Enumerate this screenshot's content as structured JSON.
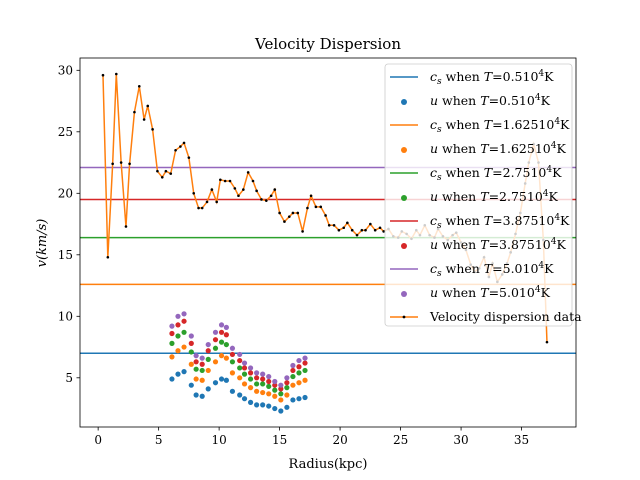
{
  "chart_data": {
    "type": "line",
    "title": "Velocity Dispersion",
    "xlabel": "Radius(kpc)",
    "ylabel": "v(km/s)",
    "xlim": [
      -1.5,
      39.5
    ],
    "ylim": [
      1.0,
      31.0
    ],
    "xticks": [
      0,
      5,
      10,
      15,
      20,
      25,
      30,
      35
    ],
    "yticks": [
      5,
      10,
      15,
      20,
      25,
      30
    ],
    "grid": false,
    "legend": "upper right",
    "legend_entries": [
      {
        "kind": "line",
        "color": "#1f77b4",
        "sym": "c",
        "sub": "s",
        "pre": " when ",
        "tvar": "T",
        "tval": "=0.510",
        "exp": "4",
        "unit": "K"
      },
      {
        "kind": "dot",
        "color": "#1f77b4",
        "sym": "u",
        "sub": "",
        "pre": " when ",
        "tvar": "T",
        "tval": "=0.510",
        "exp": "4",
        "unit": "K"
      },
      {
        "kind": "line",
        "color": "#ff7f0e",
        "sym": "c",
        "sub": "s",
        "pre": " when ",
        "tvar": "T",
        "tval": "=1.62510",
        "exp": "4",
        "unit": "K"
      },
      {
        "kind": "dot",
        "color": "#ff7f0e",
        "sym": "u",
        "sub": "",
        "pre": " when ",
        "tvar": "T",
        "tval": "=1.62510",
        "exp": "4",
        "unit": "K"
      },
      {
        "kind": "line",
        "color": "#2ca02c",
        "sym": "c",
        "sub": "s",
        "pre": " when ",
        "tvar": "T",
        "tval": "=2.7510",
        "exp": "4",
        "unit": "K"
      },
      {
        "kind": "dot",
        "color": "#2ca02c",
        "sym": "u",
        "sub": "",
        "pre": " when ",
        "tvar": "T",
        "tval": "=2.7510",
        "exp": "4",
        "unit": "K"
      },
      {
        "kind": "line",
        "color": "#d62728",
        "sym": "c",
        "sub": "s",
        "pre": " when ",
        "tvar": "T",
        "tval": "=3.87510",
        "exp": "4",
        "unit": "K"
      },
      {
        "kind": "dot",
        "color": "#d62728",
        "sym": "u",
        "sub": "",
        "pre": " when ",
        "tvar": "T",
        "tval": "=3.87510",
        "exp": "4",
        "unit": "K"
      },
      {
        "kind": "line",
        "color": "#9467bd",
        "sym": "c",
        "sub": "s",
        "pre": " when ",
        "tvar": "T",
        "tval": "=5.010",
        "exp": "4",
        "unit": "K"
      },
      {
        "kind": "dot",
        "color": "#9467bd",
        "sym": "u",
        "sub": "",
        "pre": " when ",
        "tvar": "T",
        "tval": "=5.010",
        "exp": "4",
        "unit": "K"
      },
      {
        "kind": "linedot",
        "color": "#ff7f0e",
        "text": "Velocity dispersion data"
      }
    ],
    "hlines": [
      {
        "y": 7.0,
        "color": "#1f77b4"
      },
      {
        "y": 12.6,
        "color": "#ff7f0e"
      },
      {
        "y": 16.4,
        "color": "#2ca02c"
      },
      {
        "y": 19.5,
        "color": "#d62728"
      },
      {
        "y": 22.1,
        "color": "#9467bd"
      }
    ],
    "dispersion": {
      "color": "#ff7f0e",
      "marker_color": "#000000",
      "x": [
        0.4,
        0.8,
        1.2,
        1.5,
        1.9,
        2.3,
        2.6,
        3.0,
        3.4,
        3.8,
        4.1,
        4.5,
        4.9,
        5.3,
        5.6,
        6.0,
        6.4,
        6.8,
        7.1,
        7.5,
        7.9,
        8.3,
        8.6,
        9.0,
        9.4,
        9.8,
        10.1,
        10.5,
        10.9,
        11.3,
        11.6,
        12.0,
        12.4,
        12.8,
        13.1,
        13.5,
        13.9,
        14.3,
        14.6,
        15.0,
        15.4,
        15.8,
        16.1,
        16.5,
        16.9,
        17.3,
        17.6,
        18.0,
        18.4,
        18.8,
        19.1,
        19.5,
        19.9,
        20.3,
        20.6,
        21.0,
        21.4,
        21.8,
        22.1,
        22.5,
        22.9,
        23.3,
        23.6,
        24.0,
        24.4,
        24.8,
        25.1,
        25.5,
        25.9,
        26.3,
        26.6,
        27.0,
        27.4,
        27.8,
        28.1,
        28.5,
        28.9,
        29.3,
        29.6,
        30.0,
        30.4,
        30.8,
        31.1,
        31.5,
        31.9,
        32.3,
        32.6,
        33.0,
        33.4,
        33.8,
        34.1,
        34.5,
        34.9,
        35.3,
        35.6,
        36.0,
        36.4,
        36.8,
        37.1
      ],
      "y": [
        29.6,
        14.8,
        22.4,
        29.7,
        22.5,
        17.3,
        22.4,
        26.6,
        28.7,
        26.0,
        27.1,
        25.2,
        21.8,
        21.3,
        21.8,
        21.6,
        23.5,
        23.8,
        24.1,
        22.9,
        20.0,
        18.8,
        18.8,
        19.3,
        20.3,
        19.3,
        21.1,
        21.0,
        21.0,
        20.4,
        19.8,
        20.3,
        21.7,
        21.0,
        20.2,
        19.5,
        19.4,
        19.8,
        20.3,
        18.4,
        17.7,
        18.1,
        18.4,
        18.4,
        16.9,
        18.8,
        19.8,
        18.9,
        18.9,
        18.2,
        17.4,
        17.4,
        17.0,
        17.2,
        17.6,
        17.0,
        16.6,
        17.0,
        17.0,
        17.5,
        17.0,
        17.2,
        16.9,
        17.1,
        16.5,
        16.4,
        16.9,
        16.7,
        16.3,
        17.0,
        16.6,
        17.4,
        16.6,
        16.4,
        17.1,
        16.5,
        16.2,
        16.6,
        16.8,
        16.0,
        15.4,
        14.2,
        13.6,
        13.9,
        14.8,
        13.2,
        14.3,
        12.8,
        13.4,
        14.3,
        15.2,
        16.7,
        18.4,
        20.8,
        22.5,
        24.0,
        22.5,
        16.2,
        7.9
      ]
    },
    "scatter_x": [
      6.1,
      6.6,
      7.1,
      7.7,
      8.1,
      8.6,
      9.1,
      9.7,
      10.2,
      10.6,
      11.1,
      11.7,
      12.1,
      12.6,
      13.1,
      13.6,
      14.1,
      14.6,
      15.1,
      15.6,
      16.1,
      16.6,
      17.1
    ],
    "scatter_series": [
      {
        "color": "#1f77b4",
        "values": [
          4.9,
          5.3,
          5.5,
          4.4,
          3.6,
          3.5,
          4.1,
          4.6,
          4.9,
          4.8,
          3.9,
          3.6,
          3.3,
          3.0,
          2.8,
          2.8,
          2.7,
          2.5,
          2.3,
          2.6,
          3.2,
          3.3,
          3.4
        ]
      },
      {
        "color": "#ff7f0e",
        "values": [
          6.7,
          7.2,
          7.5,
          6.1,
          4.9,
          4.8,
          5.6,
          6.3,
          6.8,
          6.6,
          5.4,
          5.0,
          4.5,
          4.2,
          3.9,
          3.8,
          3.7,
          3.5,
          3.2,
          3.6,
          4.4,
          4.6,
          4.8
        ]
      },
      {
        "color": "#2ca02c",
        "values": [
          7.8,
          8.4,
          8.7,
          7.1,
          5.7,
          5.6,
          6.5,
          7.4,
          7.9,
          7.7,
          6.3,
          5.8,
          5.3,
          4.9,
          4.5,
          4.5,
          4.3,
          4.0,
          3.7,
          4.2,
          5.1,
          5.4,
          5.6
        ]
      },
      {
        "color": "#d62728",
        "values": [
          8.6,
          9.3,
          9.6,
          7.8,
          6.3,
          6.1,
          7.2,
          8.1,
          8.7,
          8.5,
          6.9,
          6.4,
          5.8,
          5.4,
          5.0,
          4.9,
          4.7,
          4.4,
          4.1,
          4.6,
          5.6,
          5.9,
          6.2
        ]
      },
      {
        "color": "#9467bd",
        "values": [
          9.2,
          10.0,
          10.2,
          8.4,
          6.8,
          6.6,
          7.7,
          8.7,
          9.3,
          9.1,
          7.4,
          6.9,
          6.2,
          5.8,
          5.4,
          5.3,
          5.1,
          4.7,
          4.4,
          5.0,
          6.0,
          6.4,
          6.6
        ]
      }
    ]
  }
}
